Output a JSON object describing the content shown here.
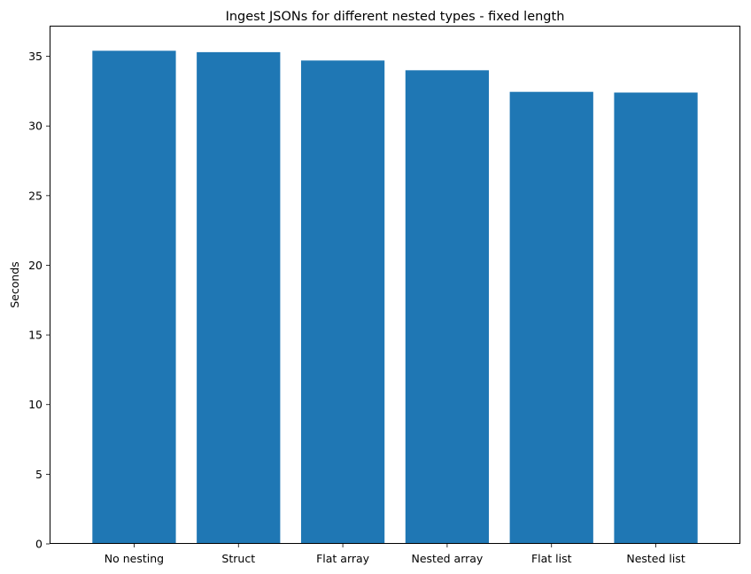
{
  "chart_data": {
    "type": "bar",
    "title": "Ingest JSONs for different nested types - fixed length",
    "xlabel": "",
    "ylabel": "Seconds",
    "categories": [
      "No nesting",
      "Struct",
      "Flat array",
      "Nested array",
      "Flat list",
      "Nested list"
    ],
    "values": [
      35.4,
      35.3,
      34.7,
      34.0,
      32.45,
      32.4
    ],
    "ylim": [
      0,
      37.2
    ],
    "yticks": [
      0,
      5,
      10,
      15,
      20,
      25,
      30,
      35
    ],
    "ytick_labels": [
      "0",
      "5",
      "10",
      "15",
      "20",
      "25",
      "30",
      "35"
    ],
    "bar_color": "#1f77b4",
    "grid": false,
    "legend": "none"
  }
}
